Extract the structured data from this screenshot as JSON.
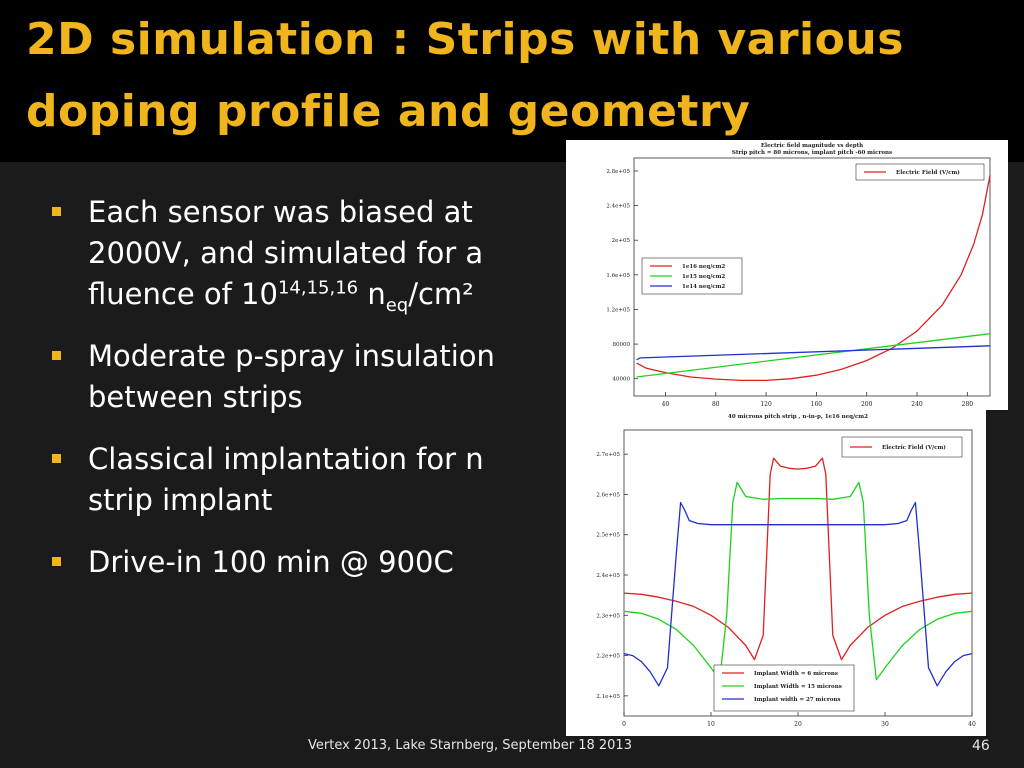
{
  "slide": {
    "title_line1": "2D simulation : Strips with various",
    "title_line2": "doping profile and geometry",
    "bullets": [
      {
        "text_a": "Each sensor was biased at 2000V, and simulated for a fluence of 10",
        "sup": "14,15,16",
        "text_b": " n",
        "sub": "eq",
        "text_c": "/cm²"
      },
      {
        "text": "Moderate p-spray insulation between strips"
      },
      {
        "text": "Classical implantation for n strip implant"
      },
      {
        "text": "Drive-in 100 min @ 900C"
      }
    ],
    "footer": "Vertex 2013, Lake Starnberg, September 18 2013",
    "page_number": "46"
  },
  "colors": {
    "accent": "#f0b51c",
    "title_bg": "#000000",
    "slide_bg": "#1b1b1b",
    "red": "#e02020",
    "green": "#20d020",
    "blue": "#2030d0"
  },
  "chart_data": [
    {
      "type": "line",
      "title": "Electric field magnitude vs depth",
      "subtitle": "Strip pitch = 80 microns, implant pitch -60 microns",
      "xlim": [
        15,
        298
      ],
      "ylim": [
        20000,
        295000
      ],
      "x_ticks": [
        40,
        80,
        120,
        160,
        200,
        240,
        280
      ],
      "y_ticks": [
        40000,
        80000,
        120000,
        160000,
        200000,
        240000,
        280000
      ],
      "y_tick_labels": [
        "40000",
        "80000",
        "1.2e+05",
        "1.6e+05",
        "2e+05",
        "2.4e+05",
        "2.8e+05"
      ],
      "top_legend": [
        "Electric Field (V/cm)"
      ],
      "series": [
        {
          "name": "1e16 neq/cm2",
          "color": "#e02020",
          "x": [
            17,
            25,
            40,
            60,
            80,
            100,
            120,
            140,
            160,
            180,
            200,
            220,
            240,
            260,
            275,
            285,
            292,
            296,
            298
          ],
          "y": [
            58000,
            52000,
            47000,
            42000,
            39500,
            38000,
            38000,
            40000,
            44000,
            51000,
            61000,
            75000,
            95000,
            125000,
            160000,
            195000,
            230000,
            260000,
            275000
          ]
        },
        {
          "name": "1e15 neq/cm2",
          "color": "#20d020",
          "x": [
            17,
            298
          ],
          "y": [
            42000,
            92000
          ]
        },
        {
          "name": "1e14 neq/cm2",
          "color": "#2030d0",
          "x": [
            17,
            20,
            298
          ],
          "y": [
            62000,
            64000,
            78000
          ]
        }
      ]
    },
    {
      "type": "line",
      "title": "40 microns pitch strip , n-in-p, 1e16 neq/cm2",
      "xlim": [
        0,
        40
      ],
      "ylim": [
        205000,
        276000
      ],
      "x_ticks": [
        0,
        10,
        20,
        30,
        40
      ],
      "y_ticks": [
        210000,
        220000,
        230000,
        240000,
        250000,
        260000,
        270000
      ],
      "y_tick_labels": [
        "2.1e+05",
        "2.2e+05",
        "2.3e+05",
        "2.4e+05",
        "2.5e+05",
        "2.6e+05",
        "2.7e+05"
      ],
      "top_legend": [
        "Electric Field (V/cm)"
      ],
      "series": [
        {
          "name": "Implant Width = 6 microns",
          "color": "#e02020",
          "x": [
            0,
            2,
            4,
            6,
            8,
            10,
            12,
            14,
            15,
            16,
            16.8,
            17.2,
            18,
            19,
            20,
            21,
            22,
            22.8,
            23.2,
            24,
            25,
            26,
            28,
            30,
            32,
            34,
            36,
            38,
            40
          ],
          "y": [
            235500,
            235200,
            234500,
            233500,
            232200,
            230000,
            227000,
            222500,
            219000,
            225000,
            265000,
            269000,
            267000,
            266500,
            266300,
            266500,
            267000,
            269000,
            265000,
            225000,
            219000,
            222500,
            227000,
            230000,
            232200,
            233500,
            234500,
            235200,
            235500
          ]
        },
        {
          "name": "Implant Width = 15 microns",
          "color": "#20d020",
          "x": [
            0,
            2,
            4,
            6,
            8,
            10,
            11,
            11.8,
            12.5,
            13,
            14,
            16,
            18,
            20,
            22,
            24,
            26,
            27,
            27.5,
            28.2,
            29,
            30,
            32,
            34,
            36,
            38,
            40
          ],
          "y": [
            231000,
            230500,
            229000,
            226500,
            222500,
            217000,
            214000,
            230000,
            258000,
            263000,
            259500,
            258800,
            259000,
            259000,
            259000,
            258800,
            259500,
            263000,
            258000,
            230000,
            214000,
            217000,
            222500,
            226500,
            229000,
            230500,
            231000
          ]
        },
        {
          "name": "Implant width = 27 microns",
          "color": "#2030d0",
          "x": [
            0,
            1,
            2,
            3,
            4,
            5,
            6,
            6.5,
            7,
            7.5,
            8.5,
            10,
            15,
            20,
            25,
            30,
            31.5,
            32.5,
            33,
            33.5,
            34,
            35,
            36,
            37,
            38,
            39,
            40
          ],
          "y": [
            220500,
            220000,
            218500,
            216000,
            212500,
            217000,
            245000,
            258000,
            256000,
            253500,
            252800,
            252500,
            252500,
            252500,
            252500,
            252500,
            252800,
            253500,
            256000,
            258000,
            245000,
            217000,
            212500,
            216000,
            218500,
            220000,
            220500
          ]
        }
      ]
    }
  ]
}
